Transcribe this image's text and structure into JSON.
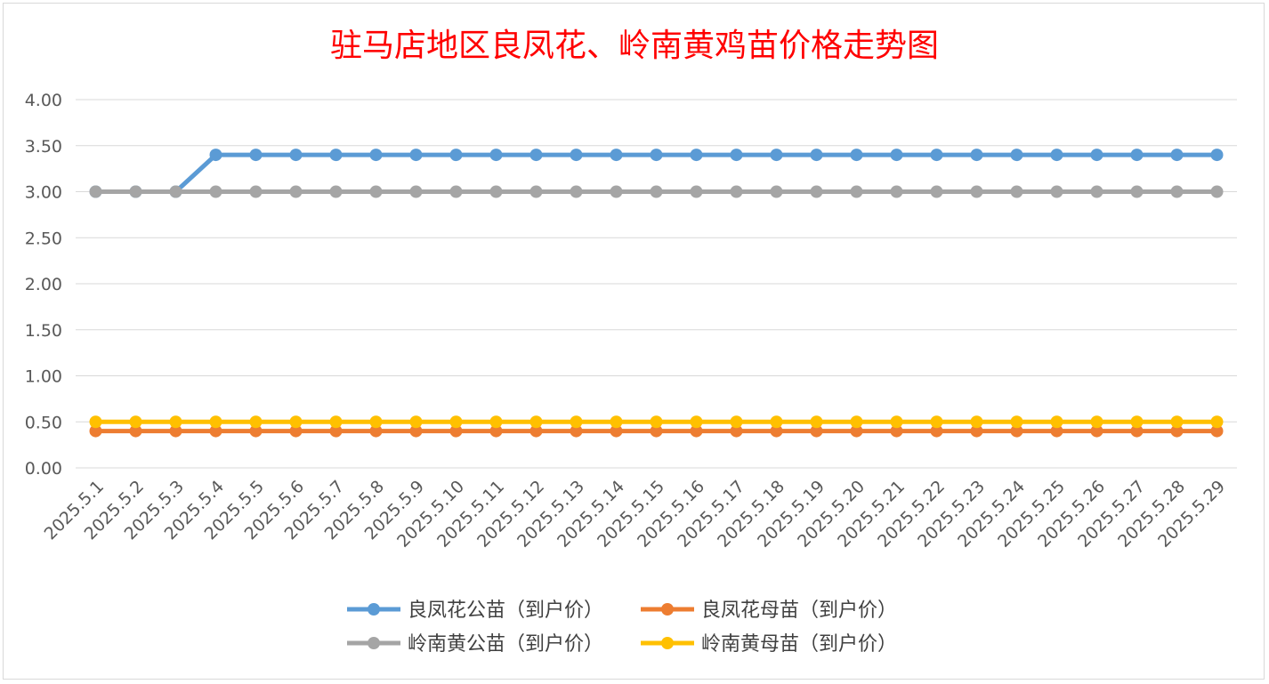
{
  "chart_data": {
    "type": "line",
    "title": "驻马店地区良凤花、岭南黄鸡苗价格走势图",
    "xlabel": "",
    "ylabel": "",
    "ylim": [
      0,
      4
    ],
    "yticks": [
      "0.00",
      "0.50",
      "1.00",
      "1.50",
      "2.00",
      "2.50",
      "3.00",
      "3.50",
      "4.00"
    ],
    "grid": true,
    "legend_position": "bottom",
    "categories": [
      "2025.5.1",
      "2025.5.2",
      "2025.5.3",
      "2025.5.4",
      "2025.5.5",
      "2025.5.6",
      "2025.5.7",
      "2025.5.8",
      "2025.5.9",
      "2025.5.10",
      "2025.5.11",
      "2025.5.12",
      "2025.5.13",
      "2025.5.14",
      "2025.5.15",
      "2025.5.16",
      "2025.5.17",
      "2025.5.18",
      "2025.5.19",
      "2025.5.20",
      "2025.5.21",
      "2025.5.22",
      "2025.5.23",
      "2025.5.24",
      "2025.5.25",
      "2025.5.26",
      "2025.5.27",
      "2025.5.28",
      "2025.5.29"
    ],
    "series": [
      {
        "name": "良凤花公苗（到户价）",
        "color": "#5b9bd5",
        "values": [
          3.0,
          3.0,
          3.0,
          3.4,
          3.4,
          3.4,
          3.4,
          3.4,
          3.4,
          3.4,
          3.4,
          3.4,
          3.4,
          3.4,
          3.4,
          3.4,
          3.4,
          3.4,
          3.4,
          3.4,
          3.4,
          3.4,
          3.4,
          3.4,
          3.4,
          3.4,
          3.4,
          3.4,
          3.4
        ]
      },
      {
        "name": "良凤花母苗（到户价）",
        "color": "#ed7d31",
        "values": [
          0.4,
          0.4,
          0.4,
          0.4,
          0.4,
          0.4,
          0.4,
          0.4,
          0.4,
          0.4,
          0.4,
          0.4,
          0.4,
          0.4,
          0.4,
          0.4,
          0.4,
          0.4,
          0.4,
          0.4,
          0.4,
          0.4,
          0.4,
          0.4,
          0.4,
          0.4,
          0.4,
          0.4,
          0.4
        ]
      },
      {
        "name": "岭南黄公苗（到户价）",
        "color": "#a5a5a5",
        "values": [
          3.0,
          3.0,
          3.0,
          3.0,
          3.0,
          3.0,
          3.0,
          3.0,
          3.0,
          3.0,
          3.0,
          3.0,
          3.0,
          3.0,
          3.0,
          3.0,
          3.0,
          3.0,
          3.0,
          3.0,
          3.0,
          3.0,
          3.0,
          3.0,
          3.0,
          3.0,
          3.0,
          3.0,
          3.0
        ]
      },
      {
        "name": "岭南黄母苗（到户价）",
        "color": "#ffc000",
        "values": [
          0.5,
          0.5,
          0.5,
          0.5,
          0.5,
          0.5,
          0.5,
          0.5,
          0.5,
          0.5,
          0.5,
          0.5,
          0.5,
          0.5,
          0.5,
          0.5,
          0.5,
          0.5,
          0.5,
          0.5,
          0.5,
          0.5,
          0.5,
          0.5,
          0.5,
          0.5,
          0.5,
          0.5,
          0.5
        ]
      }
    ]
  }
}
